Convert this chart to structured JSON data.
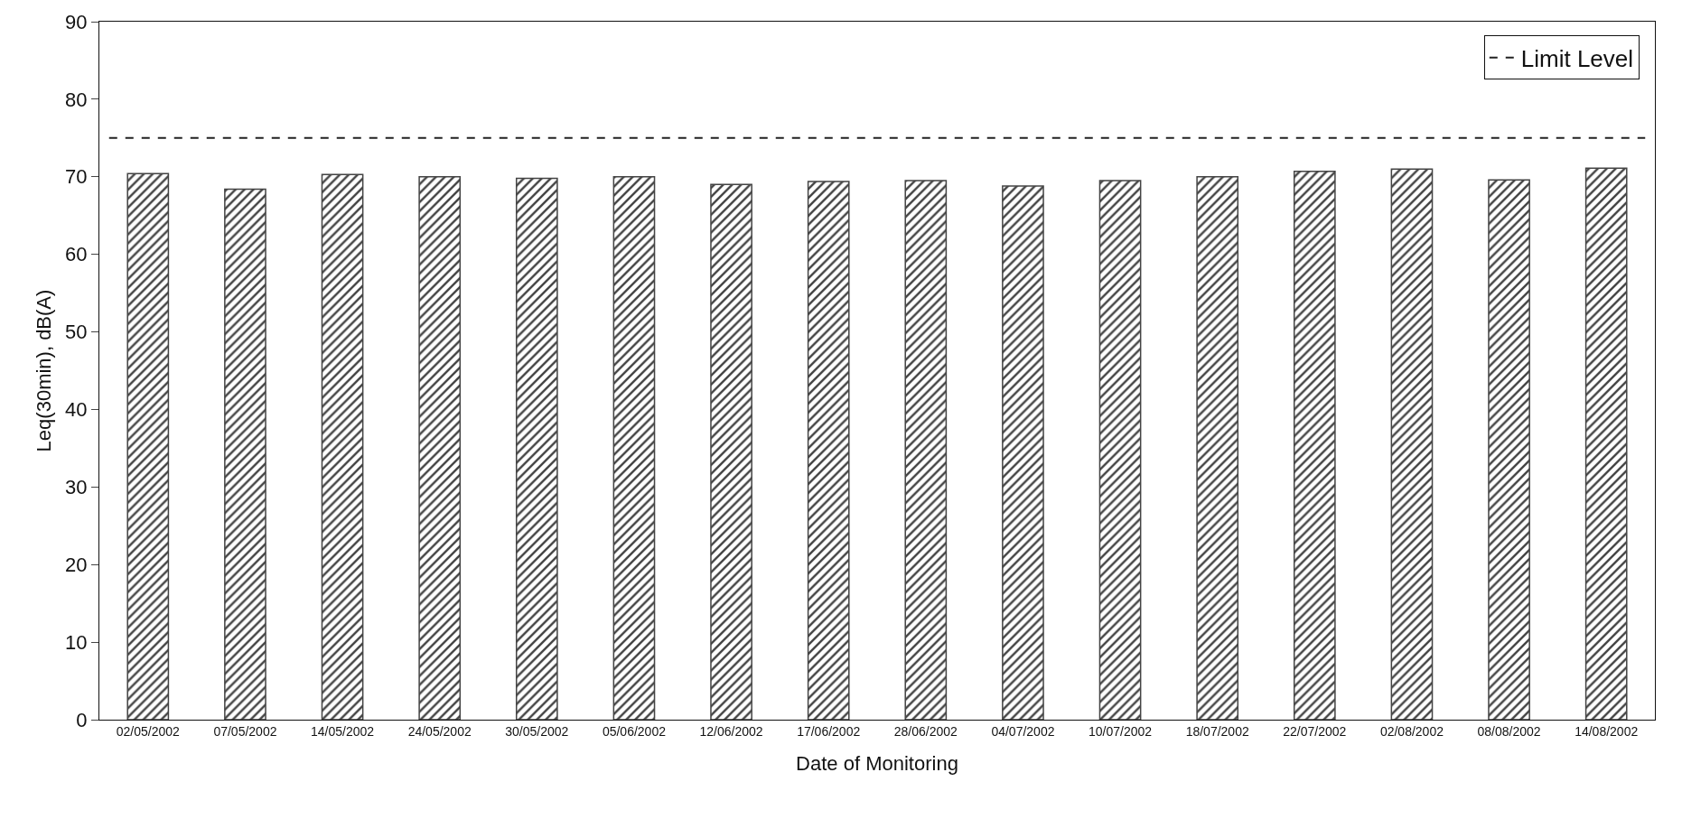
{
  "chart_data": {
    "type": "bar",
    "xlabel": "Date of Monitoring",
    "ylabel": "Leq(30min), dB(A)",
    "categories": [
      "02/05/2002",
      "07/05/2002",
      "14/05/2002",
      "24/05/2002",
      "30/05/2002",
      "05/06/2002",
      "12/06/2002",
      "17/06/2002",
      "28/06/2002",
      "04/07/2002",
      "10/07/2002",
      "18/07/2002",
      "22/07/2002",
      "02/08/2002",
      "08/08/2002",
      "14/08/2002"
    ],
    "values": [
      70.4,
      68.4,
      70.3,
      70.0,
      69.8,
      70.0,
      69.0,
      69.4,
      69.5,
      68.8,
      69.5,
      70.0,
      70.7,
      71.0,
      69.6,
      71.1
    ],
    "color": "#444444",
    "ylim": [
      0,
      90
    ],
    "yticks": [
      0,
      10,
      20,
      30,
      40,
      50,
      60,
      70,
      80,
      90
    ],
    "ref_lines": [
      {
        "axis": "y",
        "value": 75,
        "label": "Limit Level",
        "color": "#222222",
        "line_style": "dashed"
      }
    ],
    "grid": false,
    "legend": "top right"
  }
}
